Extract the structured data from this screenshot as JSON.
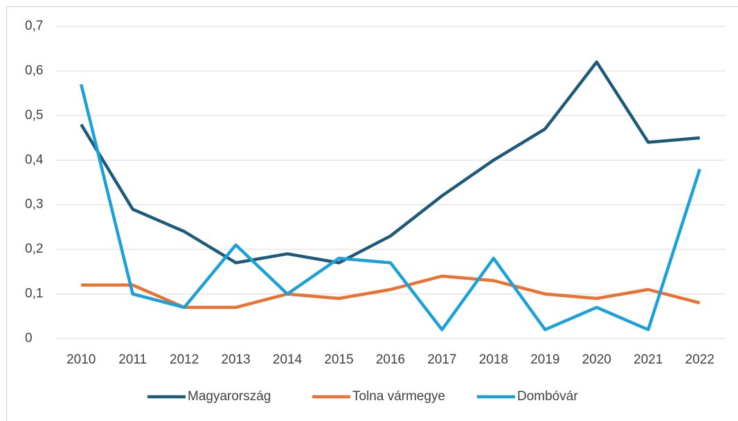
{
  "chart_data": {
    "type": "line",
    "categories": [
      "2010",
      "2011",
      "2012",
      "2013",
      "2014",
      "2015",
      "2016",
      "2017",
      "2018",
      "2019",
      "2020",
      "2021",
      "2022"
    ],
    "series": [
      {
        "name": "Magyarország",
        "color": "#1d5a7a",
        "values": [
          0.48,
          0.29,
          0.24,
          0.17,
          0.19,
          0.17,
          0.23,
          0.32,
          0.4,
          0.47,
          0.62,
          0.44,
          0.45
        ]
      },
      {
        "name": "Tolna vármegye",
        "color": "#e97132",
        "values": [
          0.12,
          0.12,
          0.07,
          0.07,
          0.1,
          0.09,
          0.11,
          0.14,
          0.13,
          0.1,
          0.09,
          0.11,
          0.08
        ]
      },
      {
        "name": "Dombóvár",
        "color": "#1ba1d8",
        "values": [
          0.57,
          0.1,
          0.07,
          0.21,
          0.1,
          0.18,
          0.17,
          0.02,
          0.18,
          0.02,
          0.07,
          0.02,
          0.38
        ]
      }
    ],
    "ylim": [
      0,
      0.7
    ],
    "yticks": [
      0,
      {
        "value": 0.1,
        "label": "0,1"
      },
      {
        "value": 0.2,
        "label": "0,2"
      },
      {
        "value": 0.3,
        "label": "0,3"
      },
      {
        "value": 0.4,
        "label": "0,4"
      },
      {
        "value": 0.5,
        "label": "0,5"
      },
      {
        "value": 0.6,
        "label": "0,6"
      },
      {
        "value": 0.7,
        "label": "0,7"
      }
    ],
    "grid": true,
    "legend": "bottom"
  }
}
